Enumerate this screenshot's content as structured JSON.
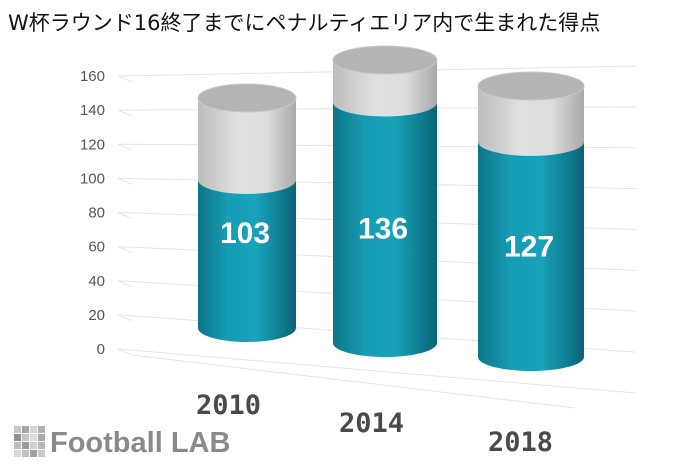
{
  "chart_data": {
    "type": "bar",
    "title": "W杯ラウンド16終了までにペナルティエリア内で生まれた得点",
    "categories": [
      "2010",
      "2014",
      "2018"
    ],
    "values": [
      103,
      136,
      127
    ],
    "value_labels": [
      "103",
      "136",
      "127"
    ],
    "ylim": [
      0,
      160
    ],
    "yticks": [
      "0",
      "20",
      "40",
      "60",
      "80",
      "100",
      "120",
      "140",
      "160"
    ],
    "xlabel": "",
    "ylabel": "",
    "grid": true,
    "legend": "none",
    "style": "3d-cylinder",
    "colors": {
      "bar": "#1496ad",
      "bar_dark": "#0b6f83",
      "cap": "#d2d2d2",
      "cap_top": "#b4b4b4"
    }
  },
  "brand": {
    "name": "Football LAB",
    "icon": "grid-squares-icon"
  }
}
